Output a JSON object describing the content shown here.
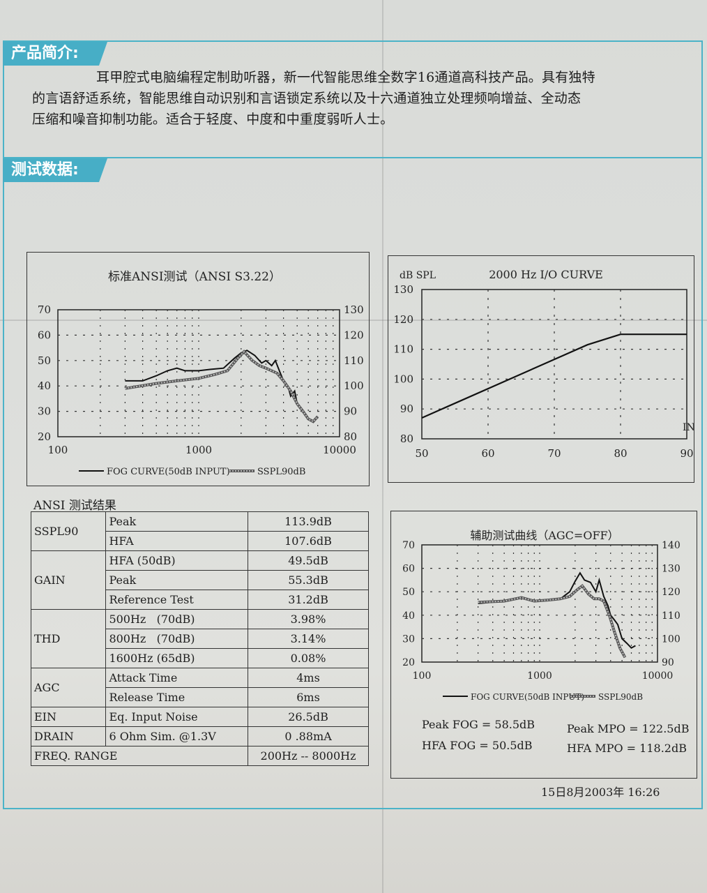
{
  "sections": {
    "intro_title": "产品简介:",
    "test_title": "测试数据:"
  },
  "intro": {
    "line1": "耳甲腔式电脑编程定制助听器，新一代智能思维全数字16通道高科技产品。具有独特",
    "line2": "的言语舒适系统，智能思维自动识别和言语锁定系统以及十六通道独立处理频响增益、全动态",
    "line3": "压缩和噪音抑制功能。适合于轻度、中度和中重度弱听人士。"
  },
  "chart_data": [
    {
      "type": "line",
      "title": "标准ANSI测试（ANSI S3.22）",
      "x_scale": "log",
      "xlim": [
        100,
        10000
      ],
      "x_ticks": [
        "100",
        "1000",
        "10000"
      ],
      "ylim_left": [
        20,
        70
      ],
      "y_ticks_left": [
        "20",
        "30",
        "40",
        "50",
        "60",
        "70"
      ],
      "ylim_right": [
        80,
        130
      ],
      "y_ticks_right": [
        "80",
        "90",
        "100",
        "110",
        "120",
        "130"
      ],
      "grid": true,
      "legend": [
        "FOG CURVE(50dB INPUT)",
        "SSPL90dB"
      ],
      "series": [
        {
          "name": "FOG CURVE(50dB INPUT)",
          "axis": "left",
          "x": [
            300,
            400,
            500,
            600,
            700,
            800,
            1000,
            1200,
            1500,
            1800,
            2000,
            2200,
            2500,
            2800,
            3000,
            3300,
            3500,
            3800,
            4000,
            4300,
            4500,
            4800,
            5000,
            5500,
            6000,
            6500,
            7000
          ],
          "y": [
            42,
            42,
            44,
            46,
            47,
            46,
            46,
            46.5,
            47,
            51,
            53,
            54,
            52,
            49,
            50,
            48,
            50,
            45,
            42,
            40,
            36,
            38,
            33,
            30,
            27,
            26,
            28
          ]
        },
        {
          "name": "SSPL90dB",
          "axis": "right",
          "x": [
            300,
            500,
            700,
            1000,
            1300,
            1600,
            1900,
            2100,
            2400,
            2700,
            3000,
            3300,
            3600,
            4000,
            4500,
            5000,
            5500,
            6000,
            6500,
            7000
          ],
          "y": [
            99,
            101,
            102,
            103,
            104.5,
            106,
            111,
            113.5,
            110,
            108,
            107,
            106,
            105,
            102,
            98,
            93,
            90,
            87,
            86,
            88
          ]
        }
      ]
    },
    {
      "type": "line",
      "title": "2000 Hz I/O CURVE",
      "ylabel": "dB SPL",
      "xlabel": "IN",
      "xlim": [
        50,
        90
      ],
      "x_ticks": [
        "50",
        "60",
        "70",
        "80",
        "90"
      ],
      "ylim": [
        80,
        130
      ],
      "y_ticks": [
        "80",
        "90",
        "100",
        "110",
        "120",
        "130"
      ],
      "grid": true,
      "series": [
        {
          "x": [
            50,
            75,
            80,
            90
          ],
          "y": [
            87,
            111.5,
            115,
            115
          ]
        }
      ]
    },
    {
      "type": "line",
      "title": "辅助测试曲线（AGC=OFF）",
      "x_scale": "log",
      "xlim": [
        100,
        10000
      ],
      "x_ticks": [
        "100",
        "1000",
        "10000"
      ],
      "ylim_left": [
        20,
        70
      ],
      "y_ticks_left": [
        "20",
        "30",
        "40",
        "50",
        "60",
        "70"
      ],
      "ylim_right": [
        90,
        140
      ],
      "y_ticks_right": [
        "90",
        "100",
        "110",
        "120",
        "130",
        "140"
      ],
      "grid": true,
      "legend": [
        "FOG CURVE(50dB INPUT)",
        "SSPL90dB"
      ],
      "series": [
        {
          "name": "FOG CURVE(50dB INPUT)",
          "axis": "left",
          "x": [
            300,
            500,
            700,
            900,
            1200,
            1500,
            1800,
            2000,
            2200,
            2400,
            2700,
            3000,
            3200,
            3500,
            3800,
            4000,
            4300,
            4600,
            5000,
            5500,
            6000,
            6500
          ],
          "y": [
            45,
            46,
            47.5,
            46,
            46.5,
            47,
            50,
            54.5,
            58,
            55,
            54,
            50,
            55,
            48,
            44,
            40,
            38,
            36,
            30,
            28,
            26,
            27
          ]
        },
        {
          "name": "SSPL90dB",
          "axis": "right",
          "x": [
            300,
            500,
            700,
            900,
            1200,
            1500,
            1800,
            2100,
            2300,
            2600,
            2900,
            3200,
            3500,
            3900,
            4300,
            4800,
            5300
          ],
          "y": [
            115.5,
            116,
            117.5,
            116,
            116.5,
            117,
            118,
            121,
            122.5,
            119,
            117,
            117,
            116,
            110,
            103,
            96,
            92
          ]
        }
      ]
    }
  ],
  "results": {
    "title": "ANSI 测试结果",
    "rows": [
      {
        "cat": "SSPL90",
        "param": "Peak",
        "value": "113.9dB"
      },
      {
        "cat": "",
        "param": "HFA",
        "value": "107.6dB"
      },
      {
        "cat": "GAIN",
        "param": "HFA (50dB)",
        "value": "49.5dB"
      },
      {
        "cat": "",
        "param": "Peak",
        "value": "55.3dB"
      },
      {
        "cat": "",
        "param": "Reference Test",
        "value": "31.2dB"
      },
      {
        "cat": "THD",
        "param": "500Hz   (70dB)",
        "value": "3.98%"
      },
      {
        "cat": "",
        "param": "800Hz   (70dB)",
        "value": "3.14%"
      },
      {
        "cat": "",
        "param": "1600Hz (65dB)",
        "value": "0.08%"
      },
      {
        "cat": "AGC",
        "param": "Attack Time",
        "value": "4ms"
      },
      {
        "cat": "",
        "param": "Release Time",
        "value": "6ms"
      },
      {
        "cat": "EIN",
        "param": "Eq. Input Noise",
        "value": "26.5dB"
      },
      {
        "cat": "DRAIN",
        "param": "6 Ohm Sim. @1.3V",
        "value": "0 .88mA"
      },
      {
        "cat": "FREQ. RANGE",
        "param": "",
        "value": "200Hz -- 8000Hz"
      }
    ]
  },
  "summary": {
    "peak_fog": "Peak FOG = 58.5dB",
    "hfa_fog": "HFA FOG = 50.5dB",
    "peak_mpo": "Peak MPO = 122.5dB",
    "hfa_mpo": "HFA MPO = 118.2dB"
  },
  "timestamp": "15日8月2003年  16:26"
}
